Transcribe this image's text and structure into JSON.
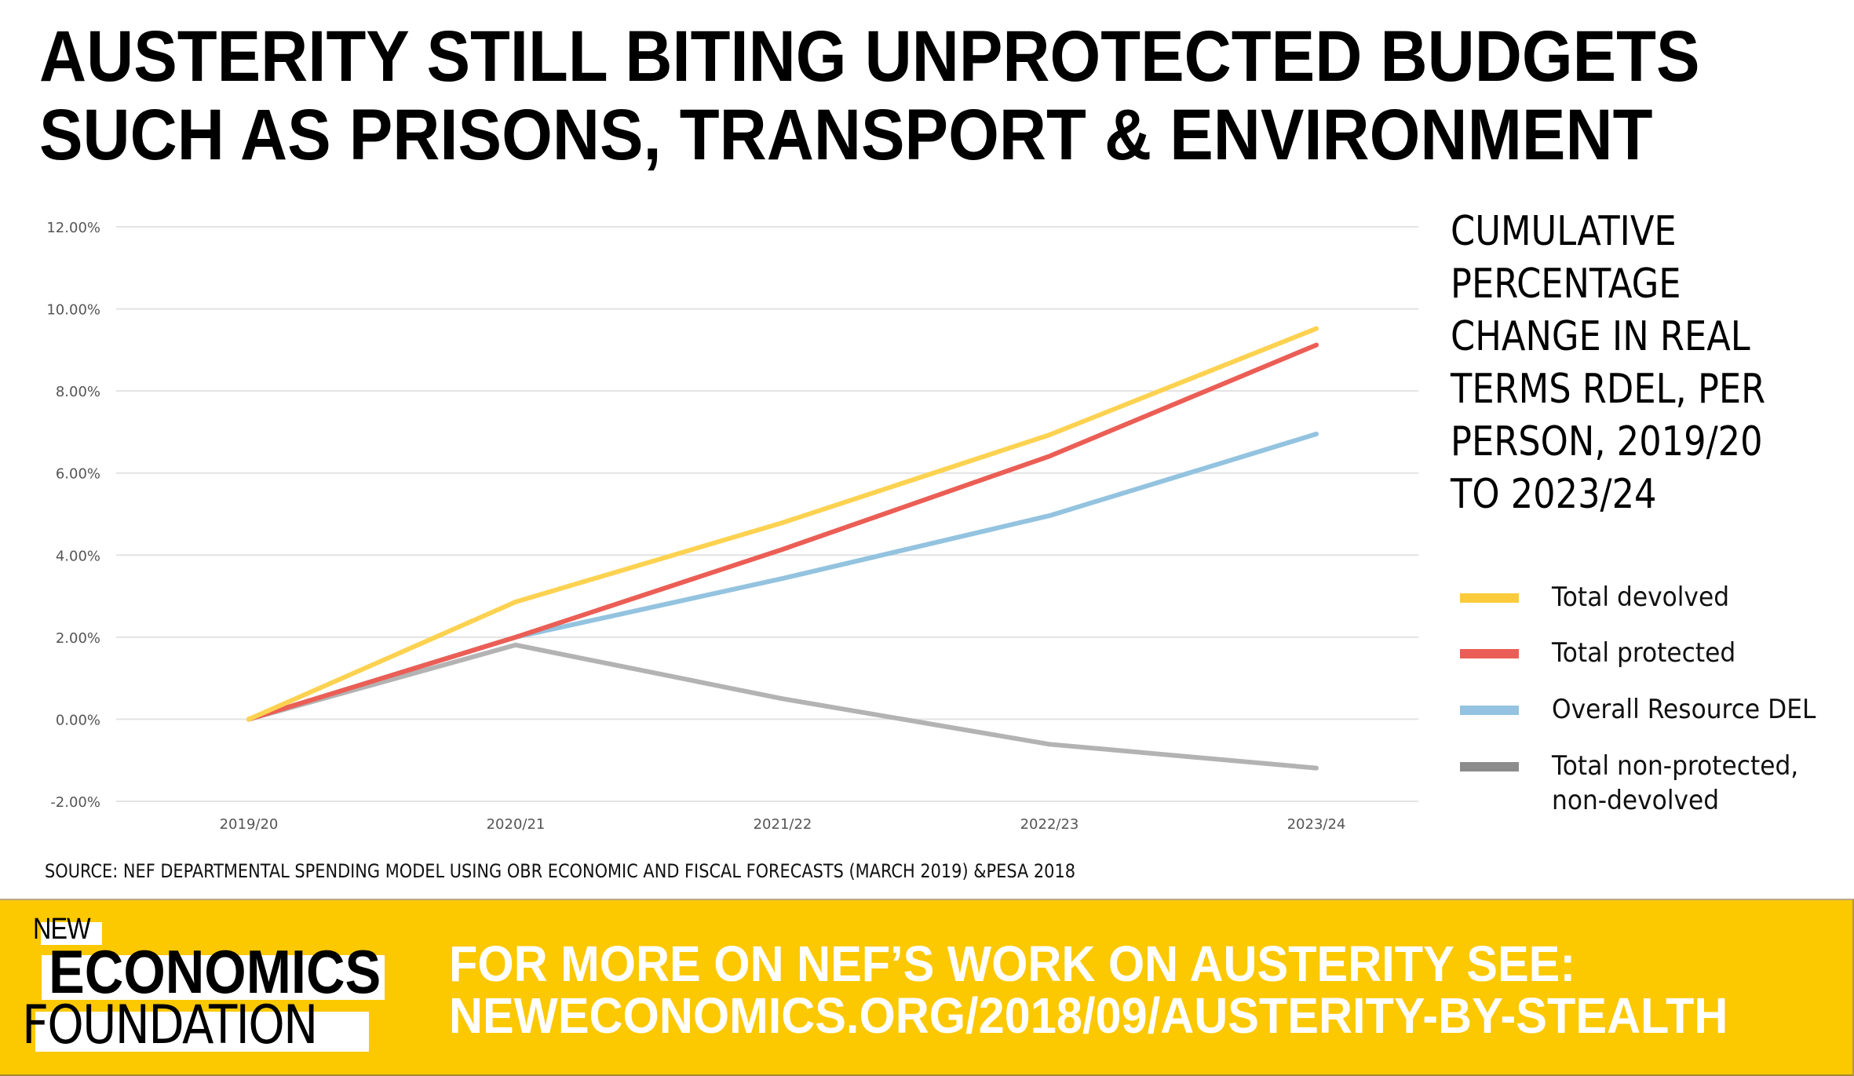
{
  "title": {
    "line1": "AUSTERITY STILL BITING UNPROTECTED BUDGETS",
    "line2": "SUCH AS PRISONS, TRANSPORT & ENVIRONMENT"
  },
  "subtitle_lines": [
    "CUMULATIVE",
    "PERCENTAGE",
    "CHANGE IN REAL",
    "TERMS RDEL, PER",
    "PERSON, 2019/20",
    "TO 2023/24"
  ],
  "source": "SOURCE: NEF DEPARTMENTAL SPENDING MODEL USING OBR ECONOMIC AND FISCAL FORECASTS (MARCH 2019) &PESA 2018",
  "footer": {
    "logo": {
      "new": "NEW",
      "economics": "ECONOMICS",
      "foundation": "FOUNDATION"
    },
    "cta_line1": "FOR MORE ON NEF’S WORK ON AUSTERITY SEE:",
    "cta_line2": "NEWECONOMICS.ORG/2018/09/AUSTERITY-BY-STEALTH",
    "background_color": "#FCC800"
  },
  "legend": [
    {
      "label": "Total devolved",
      "color": "#FBCB3C"
    },
    {
      "label": "Total protected",
      "color": "#EB5E55"
    },
    {
      "label": "Overall Resource DEL",
      "color": "#93C3E0"
    },
    {
      "label_line1": "Total non-protected,",
      "label_line2": "non-devolved",
      "color": "#8C8C8C"
    }
  ],
  "chart_data": {
    "type": "line",
    "title": "Cumulative percentage change in real terms RDEL, per person, 2019/20 to 2023/24",
    "xlabel": "",
    "ylabel": "",
    "categories": [
      "2019/20",
      "2020/21",
      "2021/22",
      "2022/23",
      "2023/24"
    ],
    "ylim": [
      -2,
      12
    ],
    "yticks": [
      -2,
      0,
      2,
      4,
      6,
      8,
      10,
      12
    ],
    "ytick_labels": [
      "-2.00%",
      "0.00%",
      "2.00%",
      "4.00%",
      "6.00%",
      "8.00%",
      "10.00%",
      "12.00%"
    ],
    "grid": true,
    "legend_position": "right",
    "series": [
      {
        "name": "Total devolved",
        "color": "#FDD250",
        "values": [
          0.0,
          2.86,
          4.79,
          6.93,
          9.52
        ]
      },
      {
        "name": "Total protected",
        "color": "#EB5E55",
        "values": [
          0.0,
          2.0,
          4.14,
          6.41,
          9.12
        ]
      },
      {
        "name": "Overall Resource DEL",
        "color": "#93C3DF",
        "values": [
          0.0,
          2.0,
          3.43,
          4.96,
          6.95
        ]
      },
      {
        "name": "Total non-protected, non-devolved",
        "color": "#B3B3B3",
        "values": [
          0.0,
          1.81,
          0.5,
          -0.61,
          -1.19
        ]
      }
    ]
  }
}
